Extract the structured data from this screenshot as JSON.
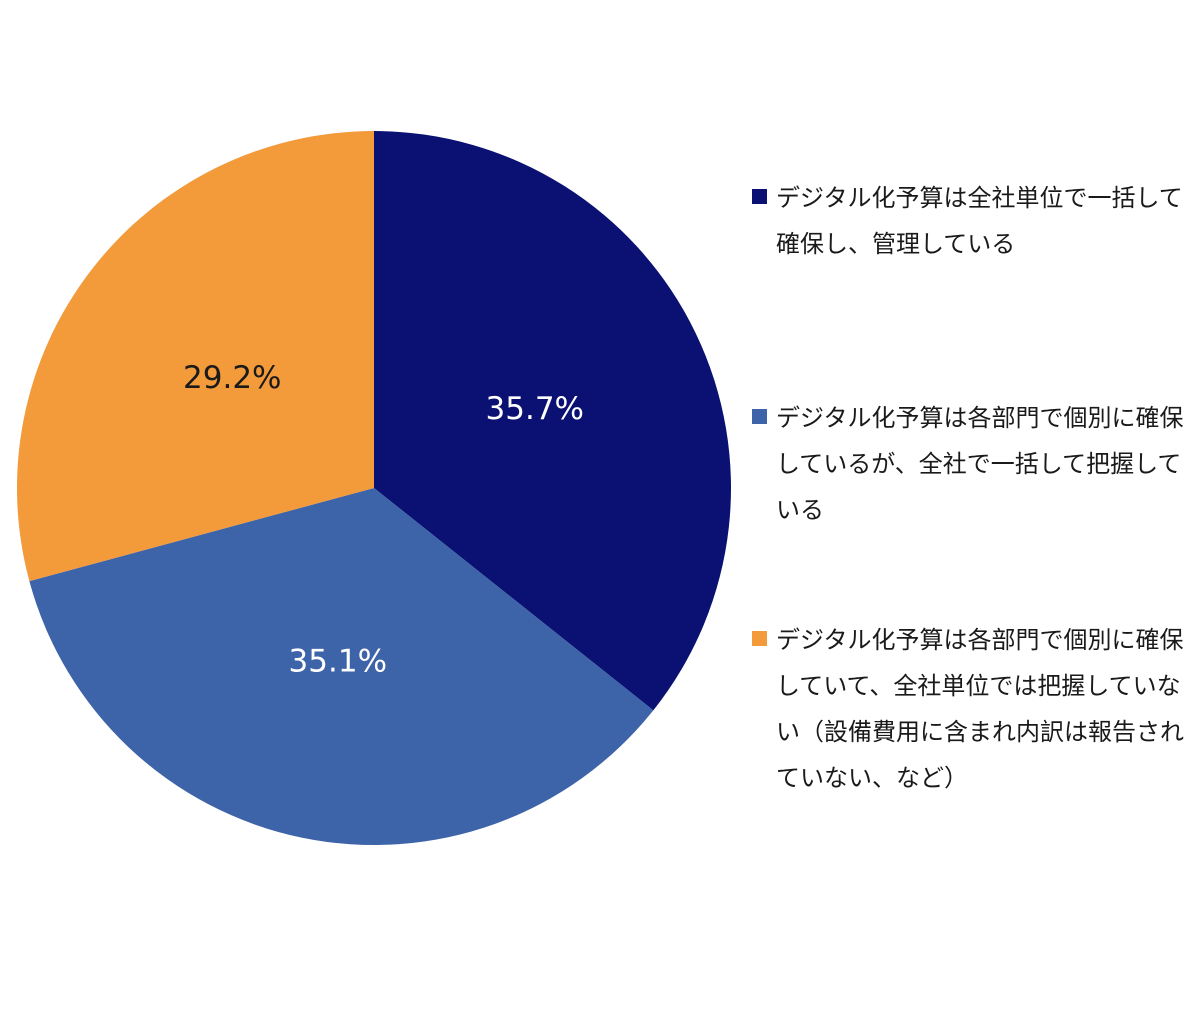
{
  "chart_data": {
    "type": "pie",
    "categories": [
      "デジタル化予算は全社単位で一括して確保し、管理している",
      "デジタル化予算は各部門で個別に確保しているが、全社で一括して把握している",
      "デジタル化予算は各部門で個別に確保していて、全社単位では把握していない（設備費用に含まれ内訳は報告されていない、など）"
    ],
    "values": [
      35.7,
      35.1,
      29.2
    ],
    "value_labels": [
      "35.7%",
      "35.1%",
      "29.2%"
    ],
    "colors": [
      "#0a1172",
      "#3d63a8",
      "#f39a3a"
    ],
    "label_colors": [
      "#ffffff",
      "#ffffff",
      "#1a1a1a"
    ],
    "legend": "right"
  }
}
